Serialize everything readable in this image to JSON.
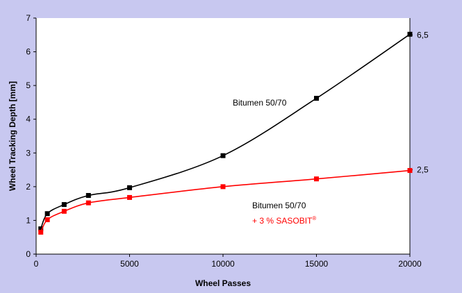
{
  "colors": {
    "background": "#c8c8f0",
    "plot_area": "#ffffff",
    "axis": "#000000",
    "series_bitumen": "#000000",
    "series_sasobit": "#ff0000"
  },
  "chart_data": {
    "type": "line",
    "title": "",
    "xlabel": "Wheel Passes",
    "ylabel": "Wheel Tracking Depth [mm]",
    "xlim": [
      0,
      20000
    ],
    "ylim": [
      0,
      7
    ],
    "xticks": [
      0,
      5000,
      10000,
      15000,
      20000
    ],
    "yticks": [
      0,
      1,
      2,
      3,
      4,
      5,
      6,
      7
    ],
    "right_ticks": [
      {
        "value": 6.5,
        "label": "6,5"
      },
      {
        "value": 2.5,
        "label": "2,5"
      }
    ],
    "grid": false,
    "legend": "none",
    "series": [
      {
        "marker": "square",
        "color": "#000000",
        "x": [
          250,
          600,
          1500,
          2800,
          5000,
          10000,
          15000,
          20000
        ],
        "y": [
          0.75,
          1.2,
          1.47,
          1.74,
          1.97,
          2.92,
          4.62,
          6.52
        ]
      },
      {
        "marker": "square",
        "color": "#ff0000",
        "x": [
          250,
          600,
          1500,
          2800,
          5000,
          10000,
          15000,
          20000
        ],
        "y": [
          0.65,
          1.02,
          1.27,
          1.52,
          1.68,
          2.0,
          2.23,
          2.48
        ]
      }
    ],
    "annotations": {
      "bitumen": "Bitumen 50/70",
      "sasobit_line1": "Bitumen 50/70",
      "sasobit_line2_prefix": "+ 3 % SASOBIT",
      "sasobit_superscript": "®"
    }
  }
}
